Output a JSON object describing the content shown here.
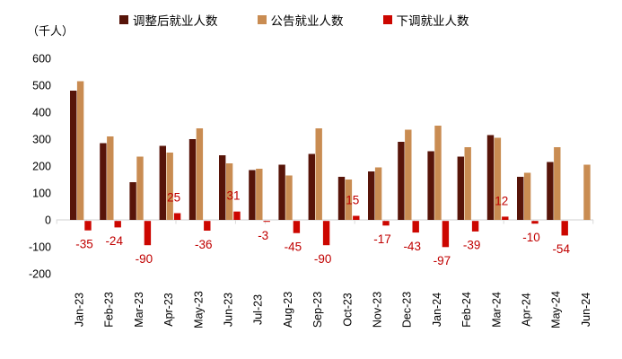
{
  "unit_label": "（千人）",
  "colors": {
    "adjusted": "#571409",
    "announced": "#C98C52",
    "revision": "#CC0600",
    "value_label": "#C00000",
    "axis": "#D9D9D9",
    "text": "#000000"
  },
  "legend": [
    {
      "label": "调整后就业人数",
      "color": "#571409"
    },
    {
      "label": "公告就业人数",
      "color": "#C98C52"
    },
    {
      "label": "下调就业人数",
      "color": "#CC0600"
    }
  ],
  "chart_data": {
    "type": "bar",
    "title": "",
    "ylabel": "（千人）",
    "ylim": [
      -200,
      600
    ],
    "ytick_step": 100,
    "grid": false,
    "legend_position": "top",
    "categories": [
      "Jan-23",
      "Feb-23",
      "Mar-23",
      "Apr-23",
      "May-23",
      "Jun-23",
      "Jul-23",
      "Aug-23",
      "Sep-23",
      "Oct-23",
      "Nov-23",
      "Dec-23",
      "Jan-24",
      "Feb-24",
      "Mar-24",
      "Apr-24",
      "May-24",
      "Jun-24"
    ],
    "series": [
      {
        "name": "调整后就业人数",
        "color": "#571409",
        "values": [
          480,
          285,
          140,
          275,
          300,
          240,
          185,
          205,
          245,
          160,
          180,
          290,
          255,
          235,
          315,
          160,
          215,
          null
        ]
      },
      {
        "name": "公告就业人数",
        "color": "#C98C52",
        "values": [
          515,
          310,
          235,
          250,
          340,
          210,
          190,
          165,
          340,
          150,
          195,
          335,
          350,
          270,
          305,
          175,
          270,
          205
        ]
      },
      {
        "name": "下调就业人数",
        "color": "#CC0600",
        "data_labels": true,
        "values": [
          -35,
          -24,
          -90,
          25,
          -36,
          31,
          -3,
          -45,
          -90,
          15,
          -17,
          -43,
          -97,
          -39,
          12,
          -10,
          -54,
          null
        ]
      }
    ]
  }
}
